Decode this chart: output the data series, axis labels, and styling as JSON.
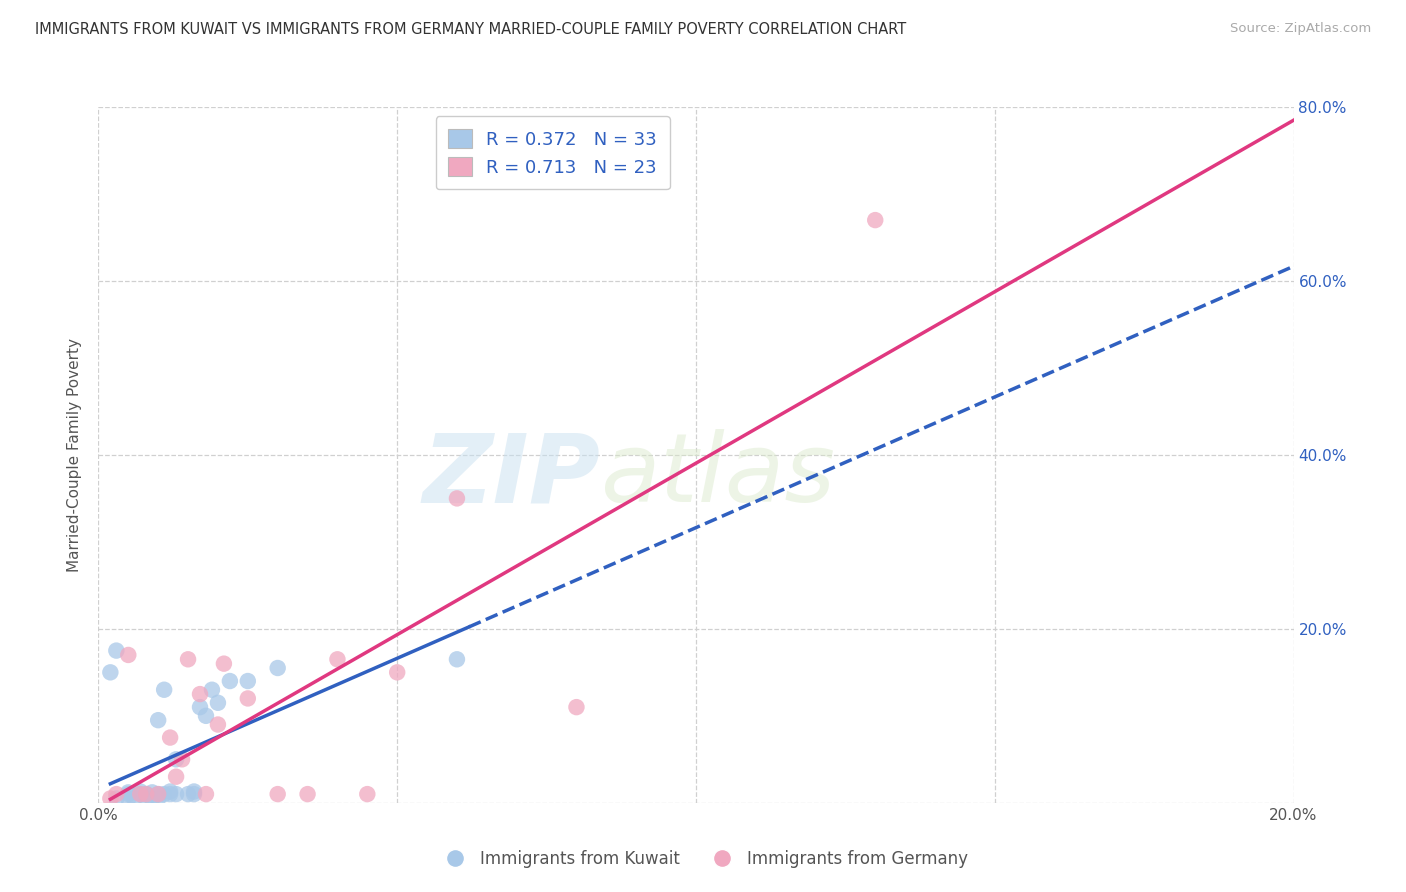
{
  "title": "IMMIGRANTS FROM KUWAIT VS IMMIGRANTS FROM GERMANY MARRIED-COUPLE FAMILY POVERTY CORRELATION CHART",
  "source": "Source: ZipAtlas.com",
  "ylabel": "Married-Couple Family Poverty",
  "xlim": [
    0.0,
    0.2
  ],
  "ylim": [
    0.0,
    0.8
  ],
  "xticks": [
    0.0,
    0.05,
    0.1,
    0.15,
    0.2
  ],
  "yticks": [
    0.0,
    0.2,
    0.4,
    0.6,
    0.8
  ],
  "kuwait_R": 0.372,
  "kuwait_N": 33,
  "germany_R": 0.713,
  "germany_N": 23,
  "kuwait_color": "#a8c8e8",
  "kuwait_line_color": "#3060c0",
  "germany_color": "#f0a8c0",
  "germany_line_color": "#e03880",
  "watermark_zip": "ZIP",
  "watermark_atlas": "atlas",
  "kuwait_x": [
    0.002,
    0.003,
    0.003,
    0.005,
    0.005,
    0.005,
    0.006,
    0.007,
    0.007,
    0.008,
    0.008,
    0.009,
    0.009,
    0.01,
    0.01,
    0.01,
    0.011,
    0.011,
    0.012,
    0.012,
    0.013,
    0.013,
    0.015,
    0.016,
    0.016,
    0.017,
    0.018,
    0.019,
    0.02,
    0.022,
    0.025,
    0.03,
    0.06
  ],
  "kuwait_y": [
    0.15,
    0.005,
    0.175,
    0.005,
    0.01,
    0.012,
    0.005,
    0.01,
    0.013,
    0.005,
    0.01,
    0.005,
    0.012,
    0.005,
    0.01,
    0.095,
    0.01,
    0.13,
    0.01,
    0.013,
    0.01,
    0.05,
    0.01,
    0.01,
    0.013,
    0.11,
    0.1,
    0.13,
    0.115,
    0.14,
    0.14,
    0.155,
    0.165
  ],
  "germany_x": [
    0.002,
    0.003,
    0.005,
    0.007,
    0.008,
    0.01,
    0.012,
    0.013,
    0.014,
    0.015,
    0.017,
    0.018,
    0.02,
    0.021,
    0.025,
    0.03,
    0.035,
    0.04,
    0.045,
    0.05,
    0.06,
    0.08,
    0.13
  ],
  "germany_y": [
    0.005,
    0.01,
    0.17,
    0.01,
    0.01,
    0.01,
    0.075,
    0.03,
    0.05,
    0.165,
    0.125,
    0.01,
    0.09,
    0.16,
    0.12,
    0.01,
    0.01,
    0.165,
    0.01,
    0.15,
    0.35,
    0.11,
    0.67
  ],
  "legend_label_kuwait": "Immigrants from Kuwait",
  "legend_label_germany": "Immigrants from Germany",
  "background_color": "#ffffff",
  "grid_color": "#d0d0d0"
}
